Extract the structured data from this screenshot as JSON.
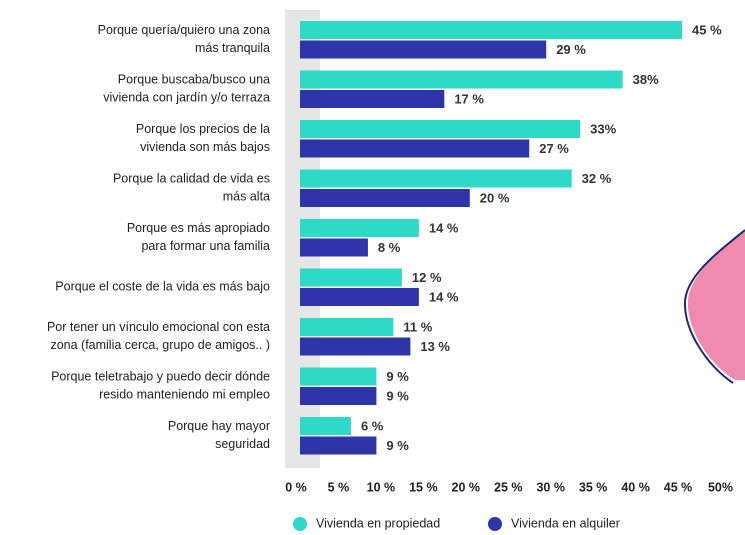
{
  "chart_data": {
    "type": "barh",
    "categories": [
      [
        "Porque quería/quiero una zona",
        "más tranquila"
      ],
      [
        "Porque buscaba/busco una",
        "vivienda con jardín y/o terraza"
      ],
      [
        "Porque los precios de la",
        "vivienda son más bajos"
      ],
      [
        "Porque la calidad de vida es",
        "más alta"
      ],
      [
        "Porque es más apropiado",
        "para formar una familia"
      ],
      [
        "Porque el coste de la vida es más bajo"
      ],
      [
        "Por tener un vínculo emocional con esta",
        "zona (familia cerca, grupo de amigos.. )"
      ],
      [
        "Porque teletrabajo y puedo decir dónde",
        "resido manteniendo mi empleo"
      ],
      [
        "Porque hay mayor",
        "seguridad"
      ]
    ],
    "series": [
      {
        "name": "Vivienda en propiedad",
        "color": "#2ed9c8",
        "values": [
          45,
          38,
          33,
          32,
          14,
          12,
          11,
          9,
          6
        ],
        "value_labels": [
          "45 %",
          "38%",
          "33%",
          "32 %",
          "14 %",
          "12 %",
          "11 %",
          "9 %",
          "6 %"
        ]
      },
      {
        "name": "Vivienda en alquiler",
        "color": "#2d35a8",
        "values": [
          29,
          17,
          27,
          20,
          8,
          14,
          13,
          9,
          9
        ],
        "value_labels": [
          "29 %",
          "17 %",
          "27 %",
          "20 %",
          "8 %",
          "14 %",
          "13 %",
          "9 %",
          "9 %"
        ]
      }
    ],
    "xlim": [
      0,
      50
    ],
    "xticks": [
      {
        "value": 0,
        "label": "0 %"
      },
      {
        "value": 5,
        "label": "5 %"
      },
      {
        "value": 10,
        "label": "10 %"
      },
      {
        "value": 15,
        "label": "15 %"
      },
      {
        "value": 20,
        "label": "20 %"
      },
      {
        "value": 25,
        "label": "25 %"
      },
      {
        "value": 30,
        "label": "30 %"
      },
      {
        "value": 35,
        "label": "35 %"
      },
      {
        "value": 40,
        "label": "40 %"
      },
      {
        "value": 45,
        "label": "45 %"
      },
      {
        "value": 50,
        "label": "50%"
      }
    ],
    "legend": "bottom"
  }
}
